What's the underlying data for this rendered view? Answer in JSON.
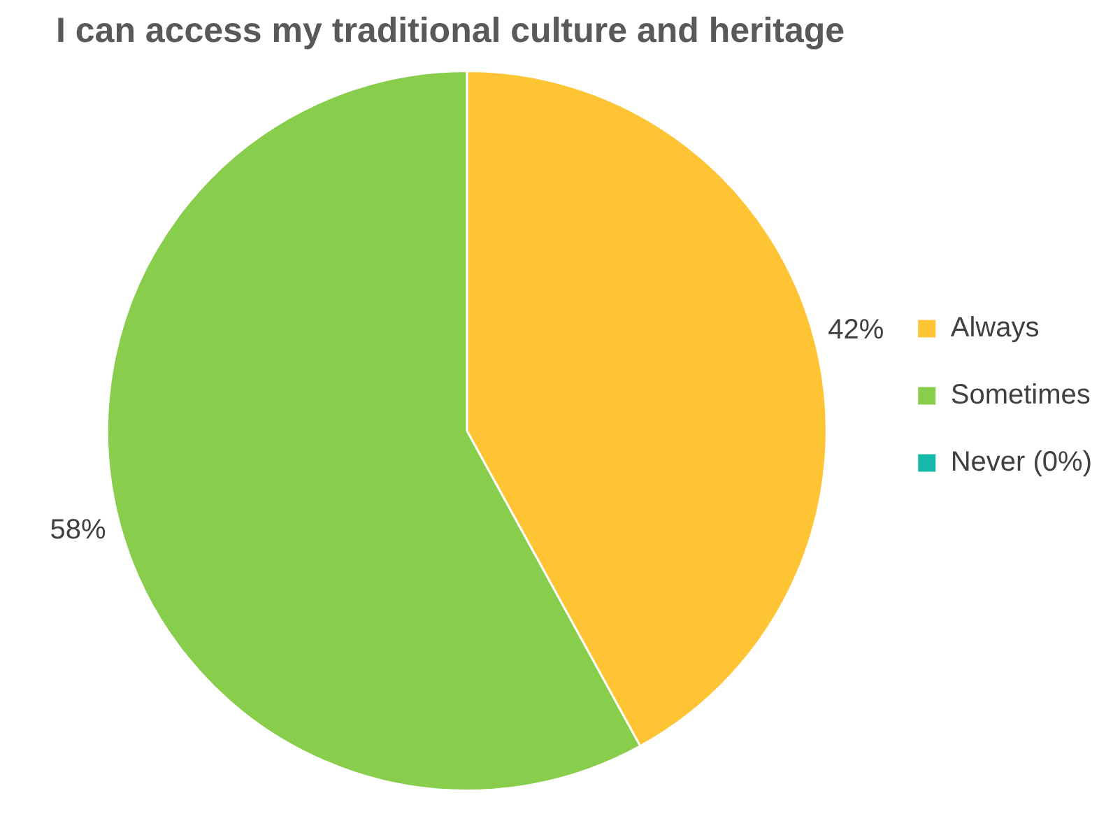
{
  "chart_data": {
    "type": "pie",
    "title": "I can access my traditional culture and heritage",
    "categories": [
      "Always",
      "Sometimes",
      "Never (0%)"
    ],
    "values": [
      42,
      58,
      0
    ],
    "value_labels": [
      "42%",
      "58%",
      null
    ],
    "colors": [
      "#ffc434",
      "#88cd4b",
      "#17b8a8"
    ],
    "legend": "right"
  }
}
